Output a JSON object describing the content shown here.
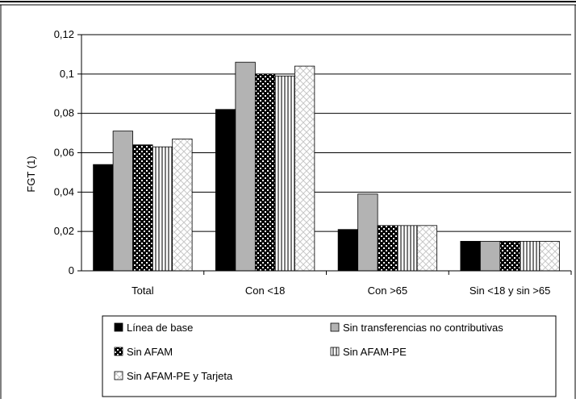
{
  "chart_data": {
    "type": "bar",
    "title": "",
    "xlabel": "",
    "ylabel": "FGT (1)",
    "ylim": [
      0,
      0.12
    ],
    "yticks": [
      {
        "value": 0,
        "label": "0"
      },
      {
        "value": 0.02,
        "label": "0,02"
      },
      {
        "value": 0.04,
        "label": "0,04"
      },
      {
        "value": 0.06,
        "label": "0,06"
      },
      {
        "value": 0.08,
        "label": "0,08"
      },
      {
        "value": 0.1,
        "label": "0,1"
      },
      {
        "value": 0.12,
        "label": "0,12"
      }
    ],
    "grid": true,
    "legend_position": "bottom",
    "categories": [
      "Total",
      "Con <18",
      "Con >65",
      "Sin <18 y sin >65"
    ],
    "series": [
      {
        "name": "Línea de base",
        "values": [
          0.054,
          0.082,
          0.021,
          0.015
        ],
        "fill": "#000000",
        "pattern": "solid"
      },
      {
        "name": "Sin transferencias no contributivas",
        "values": [
          0.071,
          0.106,
          0.039,
          0.015
        ],
        "fill": "#b3b3b3",
        "pattern": "solid"
      },
      {
        "name": "Sin AFAM",
        "values": [
          0.064,
          0.1,
          0.023,
          0.015
        ],
        "fill": "#000000",
        "pattern": "dots"
      },
      {
        "name": "Sin AFAM-PE",
        "values": [
          0.063,
          0.099,
          0.023,
          0.015
        ],
        "fill": "#9a9a9a",
        "pattern": "vstripes"
      },
      {
        "name": "Sin AFAM-PE y Tarjeta",
        "values": [
          0.067,
          0.104,
          0.023,
          0.015
        ],
        "fill": "#ffffff",
        "pattern": "crosshatch"
      }
    ]
  }
}
